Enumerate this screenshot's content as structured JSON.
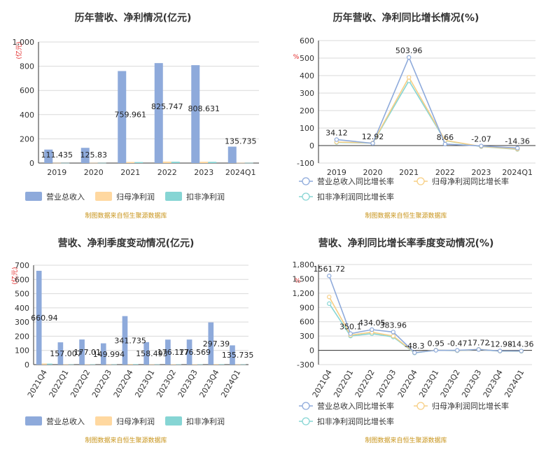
{
  "colors": {
    "revenue": "#8eaadb",
    "net_profit": "#ffd8a0",
    "deducted_profit": "#86d5d4",
    "line_revenue": "#8eaadb",
    "line_net": "#f7cf85",
    "line_deducted": "#86d5d4",
    "grid": "#d9d9d9",
    "axis": "#333333",
    "source": "#c8941a",
    "unit": "#e02020"
  },
  "chart_data": [
    {
      "type": "bar",
      "title": "历年营收、净利情况(亿元)",
      "unit_label": "(亿元)",
      "categories": [
        "2019",
        "2020",
        "2021",
        "2022",
        "2023",
        "2024Q1"
      ],
      "ylim": [
        0,
        1000
      ],
      "yticks": [
        0,
        200,
        400,
        600,
        800,
        1000
      ],
      "yticklabels": [
        "0",
        "200",
        "400",
        "600",
        "800",
        "1,000"
      ],
      "series": [
        {
          "name": "营业总收入",
          "values": [
            111.435,
            125.83,
            759.961,
            825.747,
            808.631,
            135.735
          ],
          "labels": [
            "111.435",
            "125.83",
            "759.961",
            "825.747",
            "808.631",
            "135.735"
          ]
        },
        {
          "name": "归母净利润",
          "values": [
            1.5,
            1.8,
            9.0,
            12.0,
            11.0,
            2.0
          ]
        },
        {
          "name": "扣非净利润",
          "values": [
            1.2,
            1.5,
            8.0,
            11.0,
            10.0,
            1.8
          ]
        }
      ],
      "source": "制图数据来自恒生聚源数据库",
      "legend": "bottom",
      "grid": true
    },
    {
      "type": "line",
      "title": "历年营收、净利同比增长情况(%)",
      "unit_label": "%",
      "categories": [
        "2019",
        "2020",
        "2021",
        "2022",
        "2023",
        "2024Q1"
      ],
      "ylim": [
        -100,
        600
      ],
      "yticks": [
        -100,
        0,
        100,
        200,
        300,
        400,
        500,
        600
      ],
      "yticklabels": [
        "-100",
        "0",
        "100",
        "200",
        "300",
        "400",
        "500",
        "600"
      ],
      "series": [
        {
          "name": "营业总收入同比增长率",
          "values": [
            34.12,
            12.92,
            503.96,
            8.66,
            -2.07,
            -14.36
          ],
          "labels": [
            "34.12",
            "12.92",
            "503.96",
            "8.66",
            "-2.07",
            "-14.36"
          ]
        },
        {
          "name": "归母净利润同比增长率",
          "values": [
            20,
            15,
            390,
            30,
            -5,
            -20
          ]
        },
        {
          "name": "扣非净利润同比增长率",
          "values": [
            18,
            14,
            370,
            28,
            -6,
            -22
          ]
        }
      ],
      "source": "制图数据来自恒生聚源数据库",
      "legend": "bottom",
      "grid": true
    },
    {
      "type": "bar",
      "title": "营收、净利季度变动情况(亿元)",
      "unit_label": "(亿元)",
      "categories": [
        "2021Q4",
        "2022Q1",
        "2022Q2",
        "2022Q3",
        "2022Q4",
        "2023Q1",
        "2023Q2",
        "2023Q3",
        "2023Q4",
        "2024Q1"
      ],
      "ylim": [
        0,
        700
      ],
      "yticks": [
        0,
        100,
        200,
        300,
        400,
        500,
        600,
        700
      ],
      "yticklabels": [
        "0",
        "100",
        "200",
        "300",
        "400",
        "500",
        "600",
        "700"
      ],
      "series": [
        {
          "name": "营业总收入",
          "values": [
            660.94,
            157.007,
            177.01,
            149.994,
            341.735,
            158.493,
            176.177,
            176.569,
            297.39,
            135.735
          ],
          "labels": [
            "660.94",
            "157.007",
            "177.01",
            "149.994",
            "341.735",
            "158.493",
            "176.177",
            "176.569",
            "297.39",
            "135.735"
          ]
        },
        {
          "name": "归母净利润",
          "values": [
            8,
            2,
            2.5,
            2,
            4,
            2,
            2.5,
            2.5,
            3.5,
            2
          ]
        },
        {
          "name": "扣非净利润",
          "values": [
            7,
            1.8,
            2.2,
            1.8,
            3.5,
            1.8,
            2.2,
            2.2,
            3.0,
            1.8
          ]
        }
      ],
      "source": "制图数据来自恒生聚源数据库",
      "legend": "bottom",
      "grid": true
    },
    {
      "type": "line",
      "title": "营收、净利同比增长率季度变动情况(%)",
      "unit_label": "%",
      "categories": [
        "2021Q4",
        "2022Q1",
        "2022Q2",
        "2022Q3",
        "2022Q4",
        "2023Q1",
        "2023Q2",
        "2023Q3",
        "2023Q4",
        "2024Q1"
      ],
      "ylim": [
        -300,
        1800
      ],
      "yticks": [
        -300,
        0,
        300,
        600,
        900,
        1200,
        1500,
        1800
      ],
      "yticklabels": [
        "-300",
        "0",
        "300",
        "600",
        "900",
        "1,200",
        "1,500",
        "1,800"
      ],
      "series": [
        {
          "name": "营业总收入同比增长率",
          "values": [
            1561.72,
            350.1,
            434.05,
            383.96,
            -48.3,
            0.95,
            -0.47,
            17.72,
            -12.98,
            -14.36
          ],
          "labels": [
            "1561.72",
            "350.1",
            "434.05",
            "383.96",
            "-48.3",
            "0.95",
            "-0.47",
            "17.72",
            "-12.98",
            "-14.36"
          ]
        },
        {
          "name": "归母净利润同比增长率",
          "values": [
            1120,
            320,
            380,
            300,
            -50,
            5,
            -5,
            20,
            -15,
            -18
          ]
        },
        {
          "name": "扣非净利润同比增长率",
          "values": [
            980,
            300,
            350,
            280,
            -55,
            3,
            -8,
            18,
            -18,
            -20
          ]
        }
      ],
      "source": "制图数据来自恒生聚源数据库",
      "legend": "bottom",
      "grid": true
    }
  ]
}
